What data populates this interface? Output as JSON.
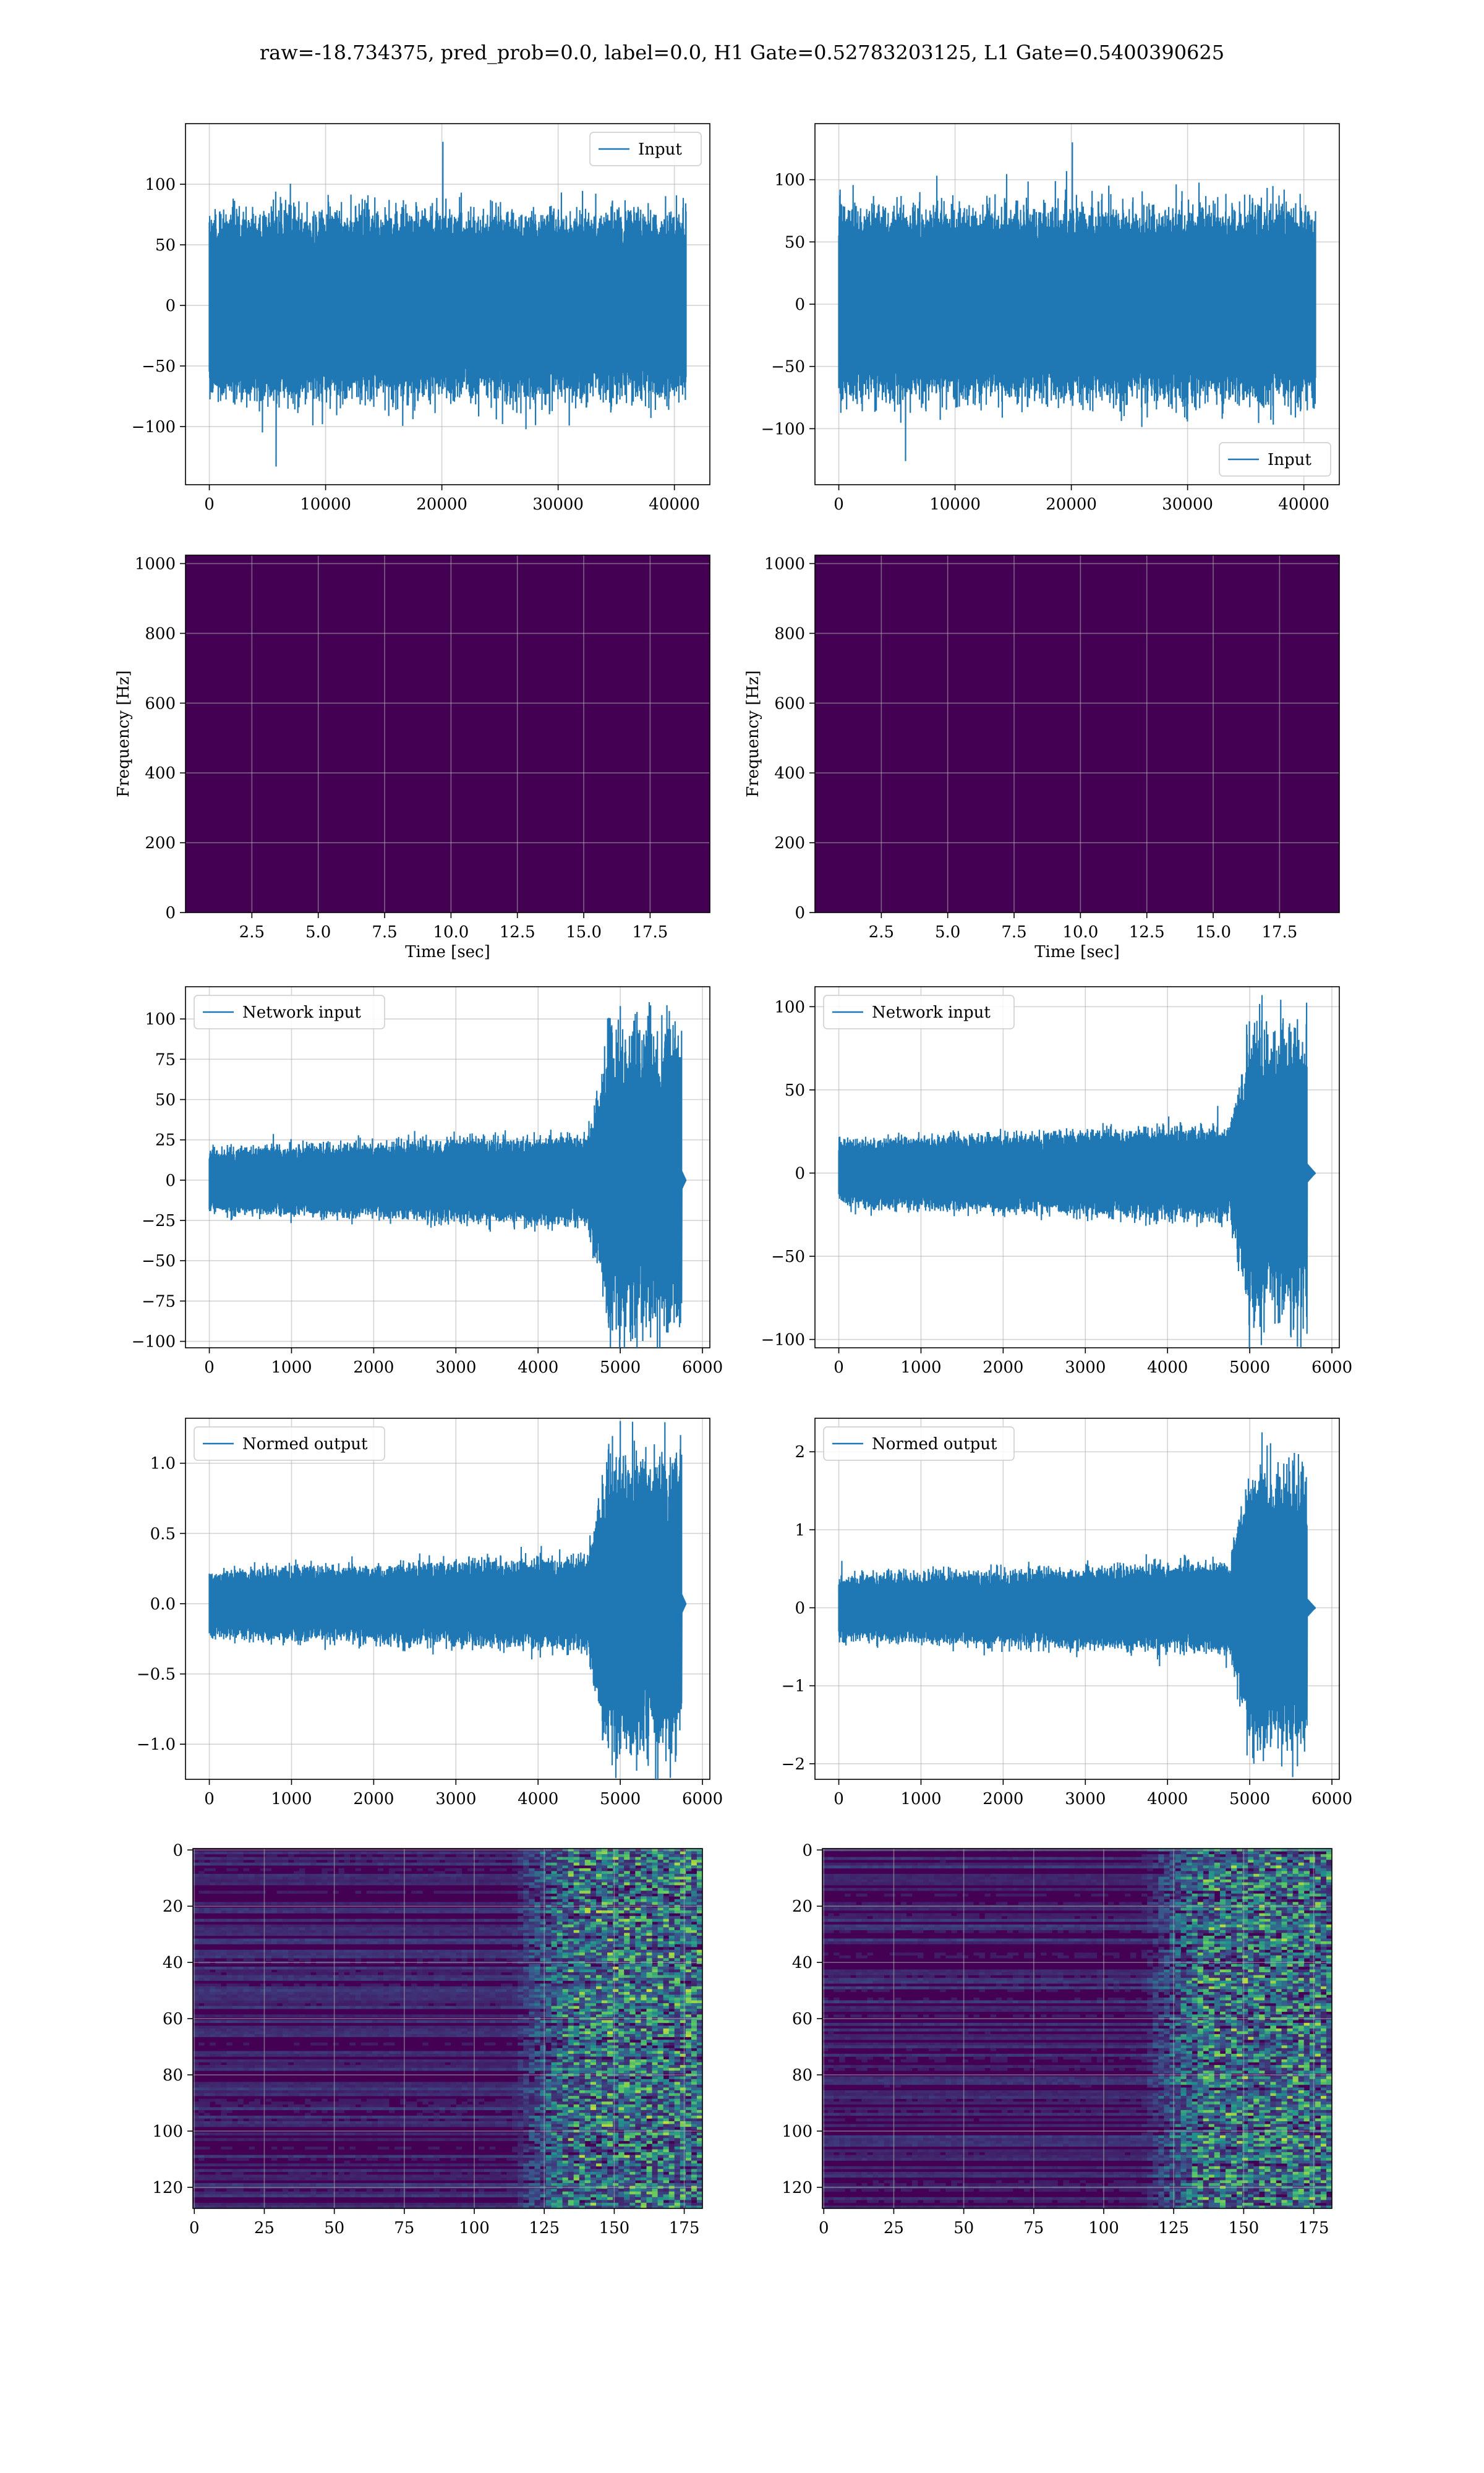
{
  "figure": {
    "suptitle": "raw=-18.734375, pred_prob=0.0, label=0.0, H1 Gate=0.52783203125, L1 Gate=0.5400390625"
  },
  "colors": {
    "line": "#1f77b4",
    "grid": "#b0b0b0",
    "viridis_dark": "#440154",
    "viridis_mid": "#3b528b",
    "viridis_teal": "#21908d",
    "viridis_green": "#5dc863",
    "viridis_yellow": "#fde725"
  },
  "chart_data": [
    {
      "id": "p1",
      "type": "line",
      "legend": "top-right",
      "series": [
        {
          "name": "Input",
          "kind": "noise",
          "n": 41000,
          "amp": 55,
          "peak": 135,
          "trough": -133
        }
      ],
      "xlim": [
        -2050,
        43050
      ],
      "ylim": [
        -148,
        150
      ],
      "xticks": [
        0,
        10000,
        20000,
        30000,
        40000
      ],
      "xticklabels": [
        "0",
        "10000",
        "20000",
        "30000",
        "40000"
      ],
      "yticks": [
        -100,
        -50,
        0,
        50,
        100
      ],
      "yticklabels": [
        "−100",
        "−50",
        "0",
        "50",
        "100"
      ],
      "xlabel": "",
      "ylabel": "",
      "grid": true
    },
    {
      "id": "p2",
      "type": "line",
      "legend": "bottom-right",
      "series": [
        {
          "name": "Input",
          "kind": "noise",
          "n": 41000,
          "amp": 55,
          "peak": 130,
          "trough": -126
        }
      ],
      "xlim": [
        -2050,
        43050
      ],
      "ylim": [
        -145,
        145
      ],
      "xticks": [
        0,
        10000,
        20000,
        30000,
        40000
      ],
      "xticklabels": [
        "0",
        "10000",
        "20000",
        "30000",
        "40000"
      ],
      "yticks": [
        -100,
        -50,
        0,
        50,
        100
      ],
      "yticklabels": [
        "−100",
        "−50",
        "0",
        "50",
        "100"
      ],
      "xlabel": "",
      "ylabel": "",
      "grid": true
    },
    {
      "id": "p3",
      "type": "heatmap",
      "colormap": "viridis",
      "xlim": [
        0,
        19.75
      ],
      "ylim": [
        0,
        1024
      ],
      "xticks": [
        2.5,
        5.0,
        7.5,
        10.0,
        12.5,
        15.0,
        17.5
      ],
      "xticklabels": [
        "2.5",
        "5.0",
        "7.5",
        "10.0",
        "12.5",
        "15.0",
        "17.5"
      ],
      "yticks": [
        0,
        200,
        400,
        600,
        800,
        1000
      ],
      "yticklabels": [
        "0",
        "200",
        "400",
        "600",
        "800",
        "1000"
      ],
      "xlabel": "Time [sec]",
      "ylabel": "Frequency [Hz]",
      "grid": true
    },
    {
      "id": "p4",
      "type": "heatmap",
      "colormap": "viridis",
      "xlim": [
        0,
        19.75
      ],
      "ylim": [
        0,
        1024
      ],
      "xticks": [
        2.5,
        5.0,
        7.5,
        10.0,
        12.5,
        15.0,
        17.5
      ],
      "xticklabels": [
        "2.5",
        "5.0",
        "7.5",
        "10.0",
        "12.5",
        "15.0",
        "17.5"
      ],
      "yticks": [
        0,
        200,
        400,
        600,
        800,
        1000
      ],
      "yticklabels": [
        "0",
        "200",
        "400",
        "600",
        "800",
        "1000"
      ],
      "xlabel": "Time [sec]",
      "ylabel": "Frequency [Hz]",
      "grid": true
    },
    {
      "id": "p5",
      "type": "line",
      "legend": "top-left",
      "series": [
        {
          "name": "Network input",
          "kind": "chirp",
          "n": 5800,
          "end": 5750,
          "tail": 5800,
          "burst": 4600,
          "amp": 16,
          "bamp": 60,
          "peak": 108,
          "trough": -93
        }
      ],
      "xlim": [
        -290,
        6090
      ],
      "ylim": [
        -104,
        120
      ],
      "xticks": [
        0,
        1000,
        2000,
        3000,
        4000,
        5000,
        6000
      ],
      "xticklabels": [
        "0",
        "1000",
        "2000",
        "3000",
        "4000",
        "5000",
        "6000"
      ],
      "yticks": [
        -100,
        -75,
        -50,
        -25,
        0,
        25,
        50,
        75,
        100
      ],
      "yticklabels": [
        "−100",
        "−75",
        "−50",
        "−25",
        "0",
        "25",
        "50",
        "75",
        "100"
      ],
      "xlabel": "",
      "ylabel": "",
      "grid": true
    },
    {
      "id": "p6",
      "type": "line",
      "legend": "top-left",
      "series": [
        {
          "name": "Network input",
          "kind": "chirp",
          "n": 5800,
          "end": 5700,
          "tail": 5800,
          "burst": 4750,
          "amp": 16,
          "bamp": 55,
          "peak": 107,
          "trough": -93
        }
      ],
      "xlim": [
        -290,
        6090
      ],
      "ylim": [
        -105,
        112
      ],
      "xticks": [
        0,
        1000,
        2000,
        3000,
        4000,
        5000,
        6000
      ],
      "xticklabels": [
        "0",
        "1000",
        "2000",
        "3000",
        "4000",
        "5000",
        "6000"
      ],
      "yticks": [
        -100,
        -50,
        0,
        50,
        100
      ],
      "yticklabels": [
        "−100",
        "−50",
        "0",
        "50",
        "100"
      ],
      "xlabel": "",
      "ylabel": "",
      "grid": true
    },
    {
      "id": "p7",
      "type": "line",
      "legend": "top-left",
      "series": [
        {
          "name": "Normed output",
          "kind": "chirp",
          "n": 5800,
          "end": 5750,
          "tail": 5800,
          "burst": 4600,
          "amp": 0.19,
          "bamp": 0.7,
          "peak": 1.3,
          "trough": -1.15
        }
      ],
      "xlim": [
        -290,
        6090
      ],
      "ylim": [
        -1.25,
        1.32
      ],
      "xticks": [
        0,
        1000,
        2000,
        3000,
        4000,
        5000,
        6000
      ],
      "xticklabels": [
        "0",
        "1000",
        "2000",
        "3000",
        "4000",
        "5000",
        "6000"
      ],
      "yticks": [
        -1.0,
        -0.5,
        0.0,
        0.5,
        1.0
      ],
      "yticklabels": [
        "−1.0",
        "−0.5",
        "0.0",
        "0.5",
        "1.0"
      ],
      "xlabel": "",
      "ylabel": "",
      "grid": true
    },
    {
      "id": "p8",
      "type": "line",
      "legend": "top-left",
      "series": [
        {
          "name": "Normed output",
          "kind": "chirp",
          "n": 5800,
          "end": 5700,
          "tail": 5800,
          "burst": 4750,
          "amp": 0.33,
          "bamp": 1.15,
          "peak": 2.25,
          "trough": -2.0
        }
      ],
      "xlim": [
        -290,
        6090
      ],
      "ylim": [
        -2.2,
        2.43
      ],
      "xticks": [
        0,
        1000,
        2000,
        3000,
        4000,
        5000,
        6000
      ],
      "xticklabels": [
        "0",
        "1000",
        "2000",
        "3000",
        "4000",
        "5000",
        "6000"
      ],
      "yticks": [
        -2,
        -1,
        0,
        1,
        2
      ],
      "yticklabels": [
        "−2",
        "−1",
        "0",
        "1",
        "2"
      ],
      "xlabel": "",
      "ylabel": "",
      "grid": true
    },
    {
      "id": "p9",
      "type": "heatmap",
      "colormap": "viridis",
      "xlim": [
        -0.5,
        181.5
      ],
      "ylim": [
        127.5,
        -0.5
      ],
      "xticks": [
        0,
        25,
        50,
        75,
        100,
        125,
        150,
        175
      ],
      "xticklabels": [
        "0",
        "25",
        "50",
        "75",
        "100",
        "125",
        "150",
        "175"
      ],
      "yticks": [
        0,
        20,
        40,
        60,
        80,
        100,
        120
      ],
      "yticklabels": [
        "0",
        "20",
        "40",
        "60",
        "80",
        "100",
        "120"
      ],
      "xlabel": "",
      "ylabel": "",
      "grid": true
    },
    {
      "id": "p10",
      "type": "heatmap",
      "colormap": "viridis",
      "xlim": [
        -0.5,
        181.5
      ],
      "ylim": [
        127.5,
        -0.5
      ],
      "xticks": [
        0,
        25,
        50,
        75,
        100,
        125,
        150,
        175
      ],
      "xticklabels": [
        "0",
        "25",
        "50",
        "75",
        "100",
        "125",
        "150",
        "175"
      ],
      "yticks": [
        0,
        20,
        40,
        60,
        80,
        100,
        120
      ],
      "yticklabels": [
        "0",
        "20",
        "40",
        "60",
        "80",
        "100",
        "120"
      ],
      "xlabel": "",
      "ylabel": "",
      "grid": true
    }
  ]
}
